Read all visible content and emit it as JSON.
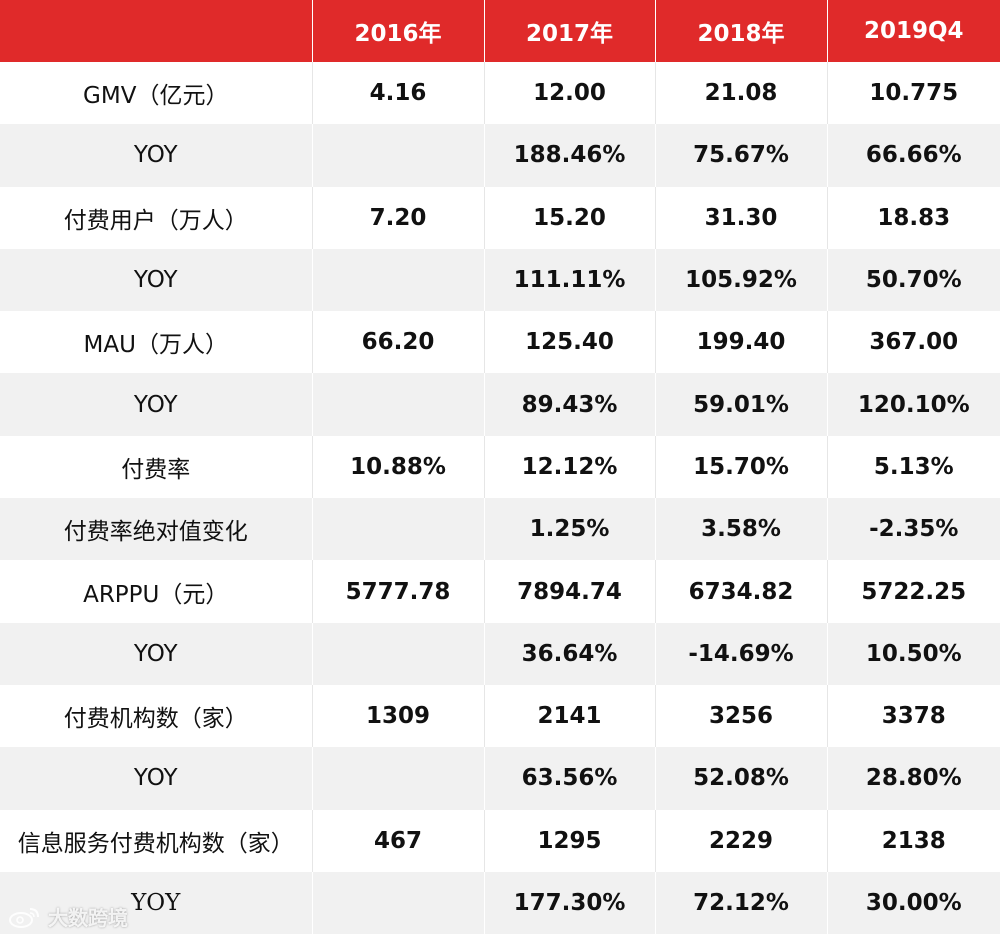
{
  "header": {
    "corner": "",
    "columns": [
      "2016年",
      "2017年",
      "2018年",
      "2019Q4"
    ]
  },
  "rows": [
    {
      "label": "GMV（亿元）",
      "values": [
        "4.16",
        "12.00",
        "21.08",
        "10.775"
      ]
    },
    {
      "label": "YOY",
      "values": [
        "",
        "188.46%",
        "75.67%",
        "66.66%"
      ]
    },
    {
      "label": "付费用户（万人）",
      "values": [
        "7.20",
        "15.20",
        "31.30",
        "18.83"
      ]
    },
    {
      "label": "YOY",
      "values": [
        "",
        "111.11%",
        "105.92%",
        "50.70%"
      ]
    },
    {
      "label": "MAU（万人）",
      "values": [
        "66.20",
        "125.40",
        "199.40",
        "367.00"
      ]
    },
    {
      "label": "YOY",
      "values": [
        "",
        "89.43%",
        "59.01%",
        "120.10%"
      ]
    },
    {
      "label": "付费率",
      "values": [
        "10.88%",
        "12.12%",
        "15.70%",
        "5.13%"
      ]
    },
    {
      "label": "付费率绝对值变化",
      "values": [
        "",
        "1.25%",
        "3.58%",
        "-2.35%"
      ]
    },
    {
      "label": "ARPPU（元）",
      "values": [
        "5777.78",
        "7894.74",
        "6734.82",
        "5722.25"
      ]
    },
    {
      "label": "YOY",
      "values": [
        "",
        "36.64%",
        "-14.69%",
        "10.50%"
      ]
    },
    {
      "label": "付费机构数（家）",
      "values": [
        "1309",
        "2141",
        "3256",
        "3378"
      ]
    },
    {
      "label": "YOY",
      "values": [
        "",
        "63.56%",
        "52.08%",
        "28.80%"
      ]
    },
    {
      "label": "信息服务付费机构数（家）",
      "values": [
        "467",
        "1295",
        "2229",
        "2138"
      ]
    },
    {
      "label": "YOY",
      "values": [
        "",
        "177.30%",
        "72.12%",
        "30.00%"
      ]
    }
  ],
  "watermark": {
    "text": "大数跨境",
    "icon": "weibo-logo-icon"
  },
  "colors": {
    "header_bg": "#e02a2a",
    "header_text": "#ffffff",
    "stripe": "#f1f1f1"
  }
}
